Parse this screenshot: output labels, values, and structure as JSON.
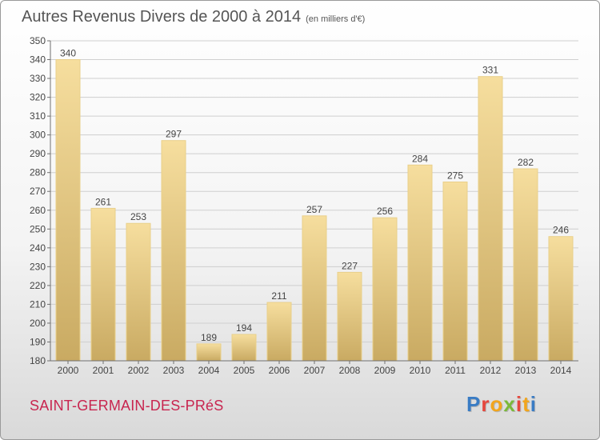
{
  "header": {
    "title": "Autres Revenus Divers de 2000 à 2014",
    "unit": "(en milliers d'€)"
  },
  "footer": {
    "commune": "SAINT-GERMAIN-DES-PRéS",
    "logo_text": "Proxiti",
    "logo_letters": [
      {
        "char": "P",
        "color": "#3a7cc4"
      },
      {
        "char": "r",
        "color": "#e6463c"
      },
      {
        "char": "o",
        "color": "#f2a51c"
      },
      {
        "char": "x",
        "color": "#7bb93a"
      },
      {
        "char": "i",
        "color": "#e6463c"
      },
      {
        "char": "t",
        "color": "#f2a51c"
      },
      {
        "char": "i",
        "color": "#3a7cc4"
      }
    ]
  },
  "colors": {
    "bar_light": "#f6de9e",
    "bar_dark": "#c9aa62",
    "grid": "#cfcfcf",
    "axis": "#707070",
    "text": "#444444"
  },
  "chart_data": {
    "type": "bar",
    "title": "Autres Revenus Divers de 2000 à 2014",
    "subtitle": "(en milliers d'€)",
    "categories": [
      "2000",
      "2001",
      "2002",
      "2003",
      "2004",
      "2005",
      "2006",
      "2007",
      "2008",
      "2009",
      "2010",
      "2011",
      "2012",
      "2013",
      "2014"
    ],
    "values": [
      340,
      261,
      253,
      297,
      189,
      194,
      211,
      257,
      227,
      256,
      284,
      275,
      331,
      282,
      246
    ],
    "ylim": [
      180,
      350
    ],
    "yticks": [
      180,
      190,
      200,
      210,
      220,
      230,
      240,
      250,
      260,
      270,
      280,
      290,
      300,
      310,
      320,
      330,
      340,
      350
    ],
    "grid": true,
    "legend": "none"
  }
}
